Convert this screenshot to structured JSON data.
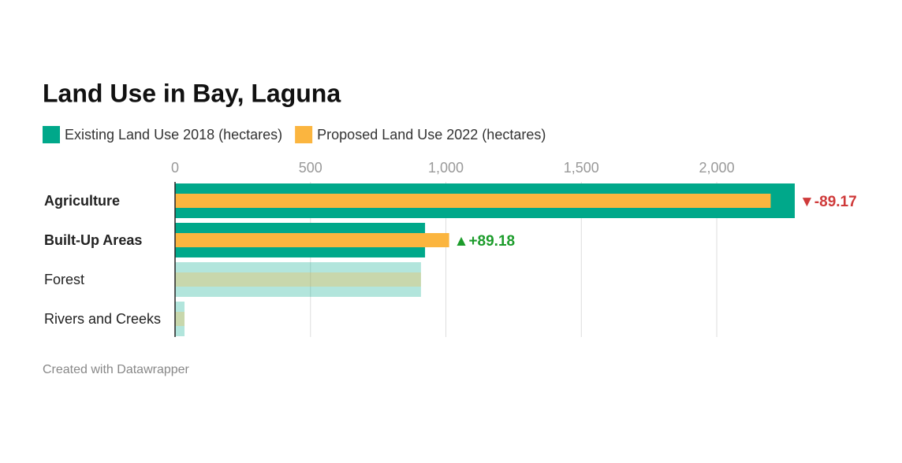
{
  "chart_data": {
    "type": "bar",
    "title": "Land Use in Bay, Laguna",
    "categories": [
      "Agriculture",
      "Built-Up Areas",
      "Forest",
      "Rivers and Creeks"
    ],
    "highlighted": [
      true,
      true,
      false,
      false
    ],
    "series": [
      {
        "name": "Existing Land Use 2018 (hectares)",
        "color": "#00a88a",
        "values": [
          2288,
          923,
          908,
          35
        ]
      },
      {
        "name": "Proposed Land Use 2022 (hectares)",
        "color": "#fbb53f",
        "values": [
          2199,
          1012,
          908,
          35
        ]
      }
    ],
    "change_labels": [
      "▼-89.17",
      "▲+89.18",
      null,
      null
    ],
    "change_colors": [
      "#cf3a3a",
      "#1c9c2b",
      null,
      null
    ],
    "xlim": [
      0,
      2288
    ],
    "xticks": [
      0,
      500,
      {
        "value": 1000,
        "label": "1,000"
      },
      {
        "value": 1500,
        "label": "1,500"
      },
      {
        "value": 2000,
        "label": "2,000"
      }
    ],
    "grid": true,
    "footer": "Created with Datawrapper"
  }
}
